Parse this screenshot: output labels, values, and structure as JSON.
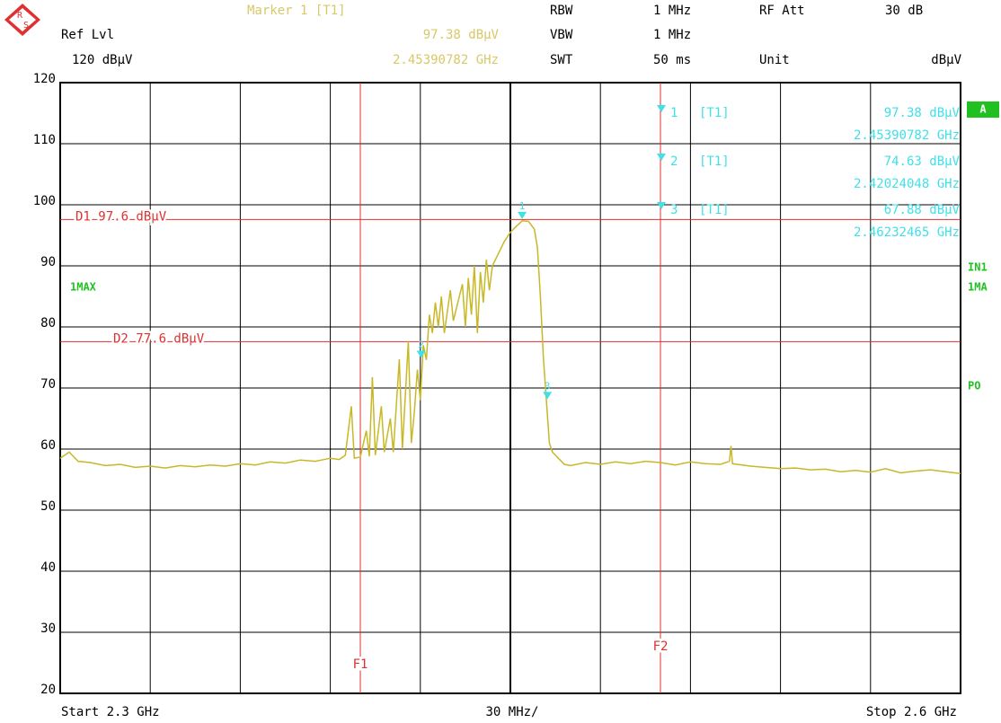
{
  "settings": {
    "ref_lvl_label": "Ref Lvl",
    "ref_lvl": "120 dBµV",
    "rbw_label": "RBW",
    "rbw": "1 MHz",
    "vbw_label": "VBW",
    "vbw": "1 MHz",
    "swt_label": "SWT",
    "swt": "50 ms",
    "rf_att_label": "RF Att",
    "rf_att": "30 dB",
    "unit_label": "Unit",
    "unit": "dBµV",
    "marker_header": "Marker 1 [T1]",
    "trace_label": "1MAX",
    "side_labels": [
      "A",
      "IN1",
      "1MA",
      "PO"
    ],
    "start": "Start 2.3 GHz",
    "span_div": "30 MHz/",
    "stop": "Stop 2.6 GHz"
  },
  "chart_data": {
    "type": "line",
    "xlim": [
      2.3,
      2.6
    ],
    "xticks": [
      2.3,
      2.33,
      2.36,
      2.39,
      2.42,
      2.45,
      2.48,
      2.51,
      2.54,
      2.57,
      2.6
    ],
    "ylim": [
      20,
      120
    ],
    "yticks": [
      20,
      30,
      40,
      50,
      60,
      70,
      80,
      90,
      100,
      110,
      120
    ],
    "grid": true,
    "x": [
      2.3,
      2.303,
      2.306,
      2.31,
      2.315,
      2.32,
      2.325,
      2.33,
      2.335,
      2.34,
      2.345,
      2.35,
      2.355,
      2.36,
      2.365,
      2.37,
      2.375,
      2.38,
      2.385,
      2.39,
      2.393,
      2.395,
      2.397,
      2.398,
      2.4,
      2.402,
      2.403,
      2.404,
      2.405,
      2.407,
      2.408,
      2.41,
      2.411,
      2.413,
      2.414,
      2.416,
      2.417,
      2.418,
      2.419,
      2.42,
      2.421,
      2.422,
      2.423,
      2.424,
      2.425,
      2.426,
      2.427,
      2.428,
      2.43,
      2.431,
      2.433,
      2.434,
      2.435,
      2.436,
      2.437,
      2.438,
      2.439,
      2.44,
      2.441,
      2.442,
      2.443,
      2.444,
      2.446,
      2.448,
      2.45,
      2.452,
      2.454,
      2.456,
      2.458,
      2.459,
      2.46,
      2.461,
      2.462,
      2.463,
      2.464,
      2.466,
      2.468,
      2.47,
      2.475,
      2.48,
      2.485,
      2.49,
      2.495,
      2.5,
      2.505,
      2.51,
      2.515,
      2.52,
      2.523,
      2.5235,
      2.524,
      2.53,
      2.535,
      2.54,
      2.545,
      2.55,
      2.555,
      2.56,
      2.565,
      2.57,
      2.575,
      2.58,
      2.585,
      2.59,
      2.595,
      2.6
    ],
    "series": [
      {
        "color": "#c8b828",
        "values": [
          58.5,
          59.5,
          58,
          57.8,
          57.3,
          57.5,
          57,
          57.2,
          56.9,
          57.3,
          57.1,
          57.4,
          57.2,
          57.6,
          57.4,
          57.9,
          57.7,
          58.2,
          58,
          58.5,
          58.3,
          59,
          67,
          58.5,
          58.7,
          63,
          58.8,
          71.8,
          59,
          67,
          59.5,
          65,
          59.5,
          74.7,
          60,
          77.6,
          61,
          66,
          73,
          68,
          77,
          74.6,
          82,
          79,
          84,
          80,
          85,
          79,
          86,
          81,
          85,
          87,
          80,
          88,
          82,
          90,
          79,
          89,
          84,
          91,
          86,
          90,
          92,
          94,
          95.5,
          96.5,
          97.4,
          97.3,
          96,
          93,
          85,
          75,
          67.9,
          61,
          59.5,
          58.5,
          57.5,
          57.3,
          57.8,
          57.5,
          57.9,
          57.6,
          58,
          57.8,
          57.4,
          57.9,
          57.6,
          57.5,
          58,
          60.5,
          57.6,
          57.2,
          57,
          56.8,
          56.9,
          56.6,
          56.7,
          56.3,
          56.5,
          56.2,
          56.8,
          56.1,
          56.4,
          56.6,
          56.3,
          56
        ]
      }
    ],
    "display_lines": [
      {
        "label": "D1 97.6 dBµV",
        "value": 97.6
      },
      {
        "label": "D2 77.6 dBµV",
        "value": 77.6
      }
    ],
    "freq_lines": [
      {
        "label": "F1",
        "value": 2.4
      },
      {
        "label": "F2",
        "value": 2.5
      }
    ],
    "markers": [
      {
        "name": "1",
        "trace": "[T1]",
        "x": 2.45390782,
        "y": 97.38,
        "x_label": "2.45390782 GHz",
        "y_label": "97.38 dBµV"
      },
      {
        "name": "2",
        "trace": "[T1]",
        "x": 2.42024048,
        "y": 74.63,
        "x_label": "2.42024048 GHz",
        "y_label": "74.63 dBµV"
      },
      {
        "name": "3",
        "trace": "[T1]",
        "x": 2.46232465,
        "y": 67.88,
        "x_label": "2.46232465 GHz",
        "y_label": "67.88 dBµV"
      }
    ]
  }
}
